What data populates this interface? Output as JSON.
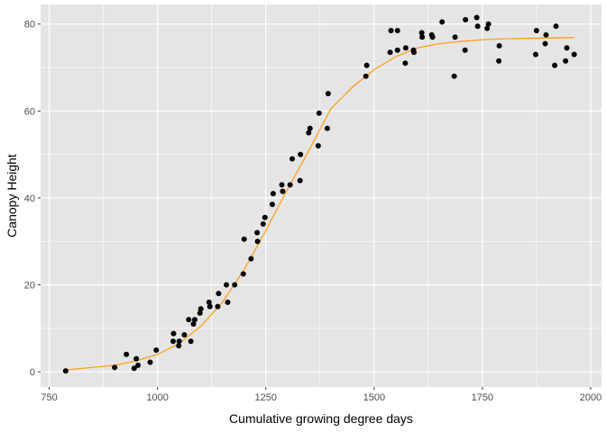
{
  "chart_data": {
    "type": "scatter",
    "title": "",
    "xlabel": "Cumulative growing degree days",
    "ylabel": "Canopy Height",
    "xlim": [
      730,
      2025
    ],
    "ylim": [
      -3.5,
      84.5
    ],
    "x_ticks": [
      750,
      1000,
      1250,
      1500,
      1750,
      2000
    ],
    "x_minor_ticks": [
      875,
      1125,
      1375,
      1625,
      1875
    ],
    "y_ticks": [
      0,
      20,
      40,
      60,
      80
    ],
    "y_minor_ticks": [
      10,
      30,
      50,
      70
    ],
    "x_tick_labels": [
      "750",
      "1000",
      "1250",
      "1500",
      "1750",
      "2000"
    ],
    "y_tick_labels": [
      "0",
      "20",
      "40",
      "60",
      "80"
    ],
    "grid": true,
    "legend": "none",
    "colors": {
      "panel": "#e5e5e5",
      "grid": "#ffffff",
      "points": "#000000",
      "fit_line": "#ff9f1c"
    },
    "series": [
      {
        "kind": "points",
        "x": [
          788,
          901,
          928,
          946,
          951,
          955,
          983,
          997,
          1036,
          1037,
          1049,
          1050,
          1062,
          1072,
          1077,
          1083,
          1086,
          1098,
          1100,
          1119,
          1121,
          1139,
          1141,
          1159,
          1162,
          1178,
          1198,
          1200,
          1216,
          1230,
          1231,
          1244,
          1248,
          1265,
          1267,
          1287,
          1289,
          1306,
          1311,
          1329,
          1330,
          1349,
          1352,
          1371,
          1373,
          1392,
          1394,
          1481,
          1483,
          1537,
          1539,
          1554,
          1554,
          1572,
          1573,
          1591,
          1592,
          1610,
          1611,
          1633,
          1635,
          1657,
          1685,
          1687,
          1710,
          1711,
          1737,
          1739,
          1761,
          1764,
          1788,
          1789,
          1873,
          1875,
          1895,
          1897,
          1917,
          1920,
          1942,
          1945,
          1962
        ],
        "y": [
          0.2,
          1.0,
          4.0,
          0.8,
          3.0,
          1.5,
          2.2,
          5.0,
          7.0,
          8.8,
          6.0,
          7.0,
          8.5,
          12.0,
          7.0,
          11.0,
          12.0,
          13.5,
          14.5,
          16.0,
          15.0,
          15.0,
          18.0,
          20.0,
          16.0,
          20.0,
          22.5,
          30.5,
          26.0,
          32.0,
          30.0,
          34.0,
          35.5,
          38.5,
          41.0,
          43.0,
          41.5,
          43.0,
          49.0,
          44.0,
          50.0,
          55.0,
          56.0,
          52.0,
          59.5,
          56.0,
          64.0,
          68.0,
          70.5,
          73.5,
          78.5,
          74.0,
          78.5,
          71.0,
          74.5,
          74.0,
          73.5,
          78.0,
          77.0,
          77.5,
          77.0,
          80.5,
          68.0,
          77.0,
          74.0,
          81.0,
          81.5,
          79.5,
          79.0,
          80.0,
          71.5,
          75.0,
          73.0,
          78.5,
          75.5,
          77.5,
          70.5,
          79.5,
          71.5,
          74.5,
          73.0
        ]
      },
      {
        "kind": "fit_line",
        "x": [
          788,
          900,
          950,
          1000,
          1050,
          1100,
          1150,
          1200,
          1250,
          1300,
          1350,
          1400,
          1450,
          1500,
          1550,
          1600,
          1650,
          1700,
          1750,
          1800,
          1850,
          1900,
          1962
        ],
        "y": [
          0.4,
          1.5,
          2.5,
          4.0,
          6.5,
          10.5,
          16.0,
          23.5,
          32.5,
          42.0,
          51.0,
          60.5,
          65.5,
          69.5,
          72.5,
          74.5,
          75.5,
          76.0,
          76.4,
          76.6,
          76.7,
          76.8,
          76.9
        ]
      }
    ]
  }
}
